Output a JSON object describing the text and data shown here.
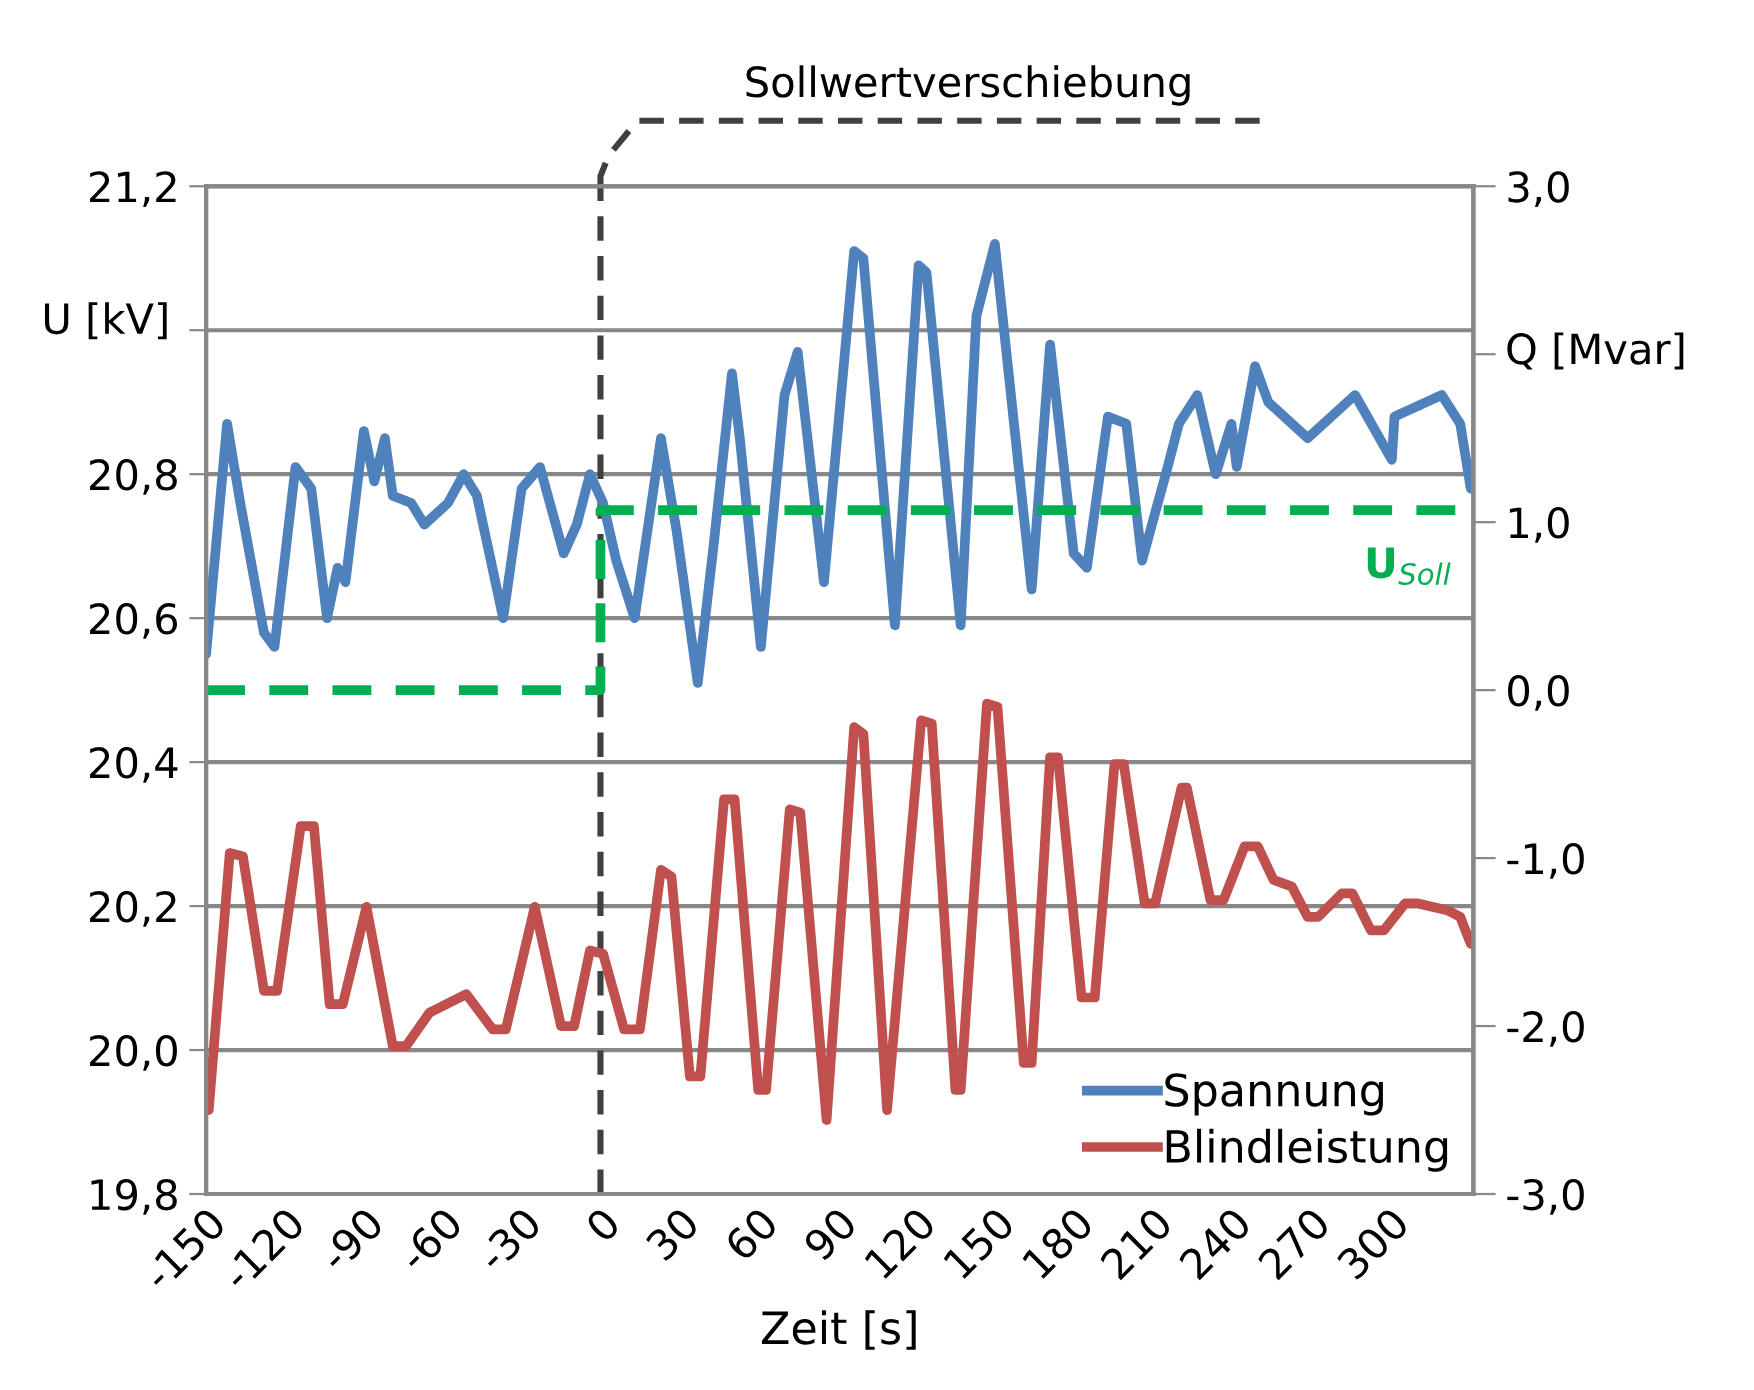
{
  "chart_data": {
    "type": "line",
    "xlabel": "Zeit [s]",
    "ylabel": "U [kV]",
    "y2label": "Q [Mvar]",
    "xlim": [
      -150,
      332
    ],
    "xticks": [
      -150,
      -120,
      -90,
      -60,
      -30,
      0,
      30,
      60,
      90,
      120,
      150,
      180,
      210,
      240,
      270,
      300
    ],
    "ylim": [
      19.8,
      21.2
    ],
    "yticks": [
      {
        "value": 19.8,
        "label": "19,8"
      },
      {
        "value": 20.0,
        "label": "20,0"
      },
      {
        "value": 20.2,
        "label": "20,2"
      },
      {
        "value": 20.4,
        "label": "20,4"
      },
      {
        "value": 20.6,
        "label": "20,6"
      },
      {
        "value": 20.8,
        "label": "20,8"
      },
      {
        "value": 21.0,
        "label": null
      },
      {
        "value": 21.2,
        "label": "21,2"
      }
    ],
    "y2lim": [
      -3.0,
      3.0
    ],
    "y2ticks": [
      {
        "value": -3.0,
        "label": "-3,0"
      },
      {
        "value": -2.0,
        "label": "-2,0"
      },
      {
        "value": -1.0,
        "label": "-1,0"
      },
      {
        "value": 0.0,
        "label": "0,0"
      },
      {
        "value": 1.0,
        "label": "1,0"
      },
      {
        "value": 2.0,
        "label": null
      },
      {
        "value": 3.0,
        "label": "3,0"
      }
    ],
    "grid": "y",
    "legend": "bottom right",
    "marker": "none",
    "ref_lines": [
      {
        "axis": "x",
        "value": 0,
        "label": "Sollwertverschiebung",
        "color": "#404040",
        "line_style": "dashed"
      }
    ],
    "series": [
      {
        "name": "Spannung",
        "color": "#4f81bd",
        "line_style": "solid",
        "x": [
          -150,
          -142,
          -137,
          -128,
          -124,
          -116,
          -110,
          -104,
          -100,
          -97,
          -90,
          -86,
          -82,
          -79,
          -72,
          -67,
          -58,
          -52,
          -47,
          -37,
          -30,
          -23,
          -14,
          -9,
          -4,
          1,
          6,
          13,
          23,
          29,
          37,
          43,
          50,
          53,
          61,
          70,
          75,
          85,
          96.5,
          100,
          112,
          121,
          124,
          137,
          143,
          150,
          164,
          171,
          180,
          185,
          193,
          200,
          206,
          215,
          220,
          227,
          234,
          240,
          242,
          249,
          254,
          269,
          287,
          301,
          302,
          320,
          327,
          331
        ],
        "values": [
          20.55,
          20.87,
          20.76,
          20.58,
          20.56,
          20.81,
          20.78,
          20.6,
          20.67,
          20.65,
          20.86,
          20.79,
          20.85,
          20.77,
          20.76,
          20.73,
          20.76,
          20.8,
          20.77,
          20.6,
          20.78,
          20.81,
          20.69,
          20.73,
          20.8,
          20.76,
          20.68,
          20.6,
          20.85,
          20.72,
          20.51,
          20.7,
          20.94,
          20.85,
          20.56,
          20.91,
          20.97,
          20.65,
          21.11,
          21.1,
          20.59,
          21.09,
          21.08,
          20.59,
          21.02,
          21.12,
          20.64,
          20.98,
          20.69,
          20.67,
          20.88,
          20.87,
          20.68,
          20.8,
          20.87,
          20.91,
          20.8,
          20.87,
          20.81,
          20.95,
          20.9,
          20.85,
          20.91,
          20.82,
          20.88,
          20.91,
          20.87,
          20.78
        ]
      },
      {
        "name": "Blindleistung",
        "color": "#c0504d",
        "line_style": "solid",
        "axis": "y2",
        "x": [
          -149,
          -141,
          -136,
          -128,
          -123,
          -114,
          -109,
          -103,
          -98,
          -89,
          -79,
          -74,
          -65,
          -51,
          -41,
          -36,
          -25,
          -15,
          -10,
          -4,
          1,
          9,
          15,
          23,
          27,
          34,
          38,
          47,
          51,
          60,
          63,
          72,
          76,
          86,
          96.5,
          100,
          109,
          122,
          126,
          135,
          137,
          147,
          151,
          161,
          164,
          171,
          174,
          183,
          188,
          195.5,
          199,
          207,
          211,
          221,
          223,
          232,
          237,
          245,
          250,
          256,
          263,
          269,
          273,
          282,
          286,
          293,
          298,
          306,
          311,
          322,
          327,
          331
        ],
        "values": [
          -2.5,
          -0.97,
          -0.99,
          -1.79,
          -1.79,
          -0.81,
          -0.81,
          -1.87,
          -1.87,
          -1.29,
          -2.12,
          -2.12,
          -1.92,
          -1.81,
          -2.02,
          -2.02,
          -1.29,
          -2.0,
          -2.0,
          -1.55,
          -1.57,
          -2.02,
          -2.02,
          -1.07,
          -1.11,
          -2.3,
          -2.3,
          -0.65,
          -0.65,
          -2.38,
          -2.38,
          -0.71,
          -0.73,
          -2.56,
          -0.22,
          -0.26,
          -2.5,
          -0.18,
          -0.2,
          -2.38,
          -2.38,
          -0.08,
          -0.1,
          -2.22,
          -2.22,
          -0.4,
          -0.4,
          -1.83,
          -1.83,
          -0.44,
          -0.44,
          -1.27,
          -1.27,
          -0.58,
          -0.58,
          -1.25,
          -1.25,
          -0.93,
          -0.93,
          -1.13,
          -1.17,
          -1.35,
          -1.35,
          -1.21,
          -1.21,
          -1.43,
          -1.43,
          -1.27,
          -1.27,
          -1.31,
          -1.35,
          -1.51
        ]
      },
      {
        "name": "U$_{Soll}$",
        "type": "step",
        "color": "#00b050",
        "line_style": "dashed",
        "x": [
          -150,
          0,
          332
        ],
        "values": [
          20.5,
          20.75,
          20.75
        ]
      }
    ]
  }
}
